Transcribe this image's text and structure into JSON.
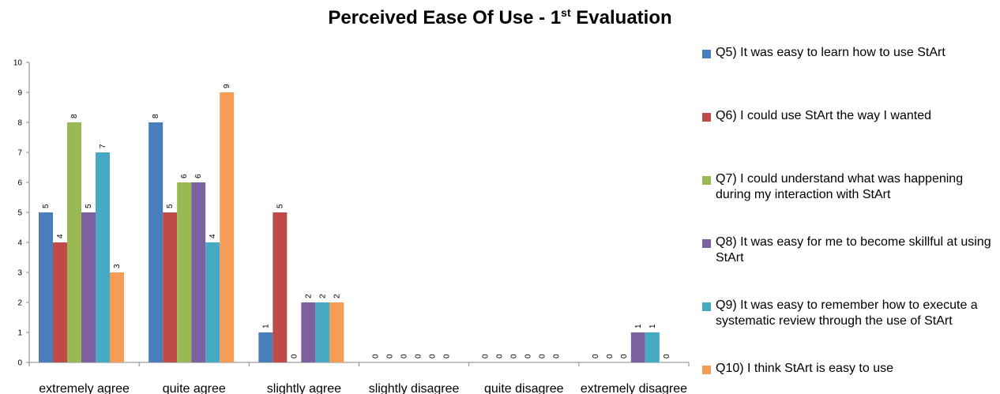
{
  "chart_data": {
    "type": "bar",
    "title": "Perceived Ease Of Use - 1",
    "title_sup": "st",
    "title_suffix": " Evaluation",
    "categories": [
      "extremely agree",
      "quite agree",
      "slightly agree",
      "slightly disagree",
      "quite disagree",
      "extremely disagree"
    ],
    "ylim": [
      0,
      10
    ],
    "yticks": [
      0,
      1,
      2,
      3,
      4,
      5,
      6,
      7,
      8,
      9,
      10
    ],
    "grid": false,
    "legend_position": "right",
    "series": [
      {
        "name": "Q5) It was easy to learn how to use StArt",
        "color": "#4a7ebb",
        "values": [
          5,
          8,
          1,
          0,
          0,
          0
        ]
      },
      {
        "name": "Q6)  I could use StArt the way I wanted",
        "color": "#be4b48",
        "values": [
          4,
          5,
          5,
          0,
          0,
          0
        ]
      },
      {
        "name": "Q7) I could understand what was happening during my interaction with StArt",
        "color": "#98b954",
        "values": [
          8,
          6,
          0,
          0,
          0,
          0
        ]
      },
      {
        "name": "Q8)  It was easy for me to become skillful at using StArt",
        "color": "#7d60a0",
        "values": [
          5,
          6,
          2,
          0,
          0,
          1
        ]
      },
      {
        "name": "Q9) It was easy to remember how to execute a systematic review through the use of StArt",
        "color": "#46aac5",
        "values": [
          7,
          4,
          2,
          0,
          0,
          1
        ]
      },
      {
        "name": "Q10) I think StArt is easy to use",
        "color": "#f59d56",
        "values": [
          3,
          9,
          2,
          0,
          0,
          0
        ]
      }
    ]
  }
}
